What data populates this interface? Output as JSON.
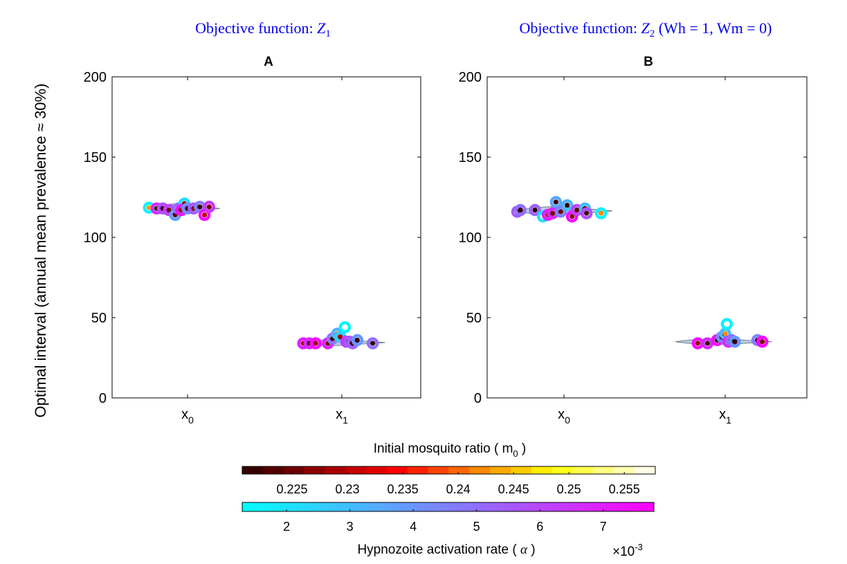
{
  "figure": {
    "ylabel": "Optimal interval (annual mean prevalence ≈ 30%)"
  },
  "chart_data": [
    {
      "type": "scatter",
      "panel_label": "A",
      "objective_title": "Objective function: Z1",
      "objective_prefix": "Objective function: ",
      "objective_var": "Z",
      "objective_sub": "1",
      "objective_suffix": "",
      "ylim": [
        0,
        200
      ],
      "yticks": [
        0,
        50,
        100,
        150,
        200
      ],
      "ytick_labels": [
        "0",
        "50",
        "100",
        "150",
        "200"
      ],
      "categories": [
        "x0",
        "x1"
      ],
      "category_base": "x",
      "category_subs": [
        "0",
        "1"
      ],
      "violins": [
        {
          "category": 0,
          "center": 118,
          "left_extent": -0.24,
          "right_extent": 0.21,
          "half_height": 2.5
        },
        {
          "category": 1,
          "center": 34.5,
          "left_extent": -0.27,
          "right_extent": 0.28,
          "half_height": 1.6
        }
      ],
      "points": [
        {
          "cat": 0,
          "dx": -0.25,
          "y": 118.5,
          "alpha": 1.6,
          "m0": 0.243
        },
        {
          "cat": 0,
          "dx": -0.2,
          "y": 118,
          "alpha": 6.8,
          "m0": 0.222
        },
        {
          "cat": 0,
          "dx": -0.16,
          "y": 118,
          "alpha": 5.8,
          "m0": 0.221
        },
        {
          "cat": 0,
          "dx": -0.12,
          "y": 117,
          "alpha": 6.2,
          "m0": 0.226
        },
        {
          "cat": 0,
          "dx": -0.08,
          "y": 114,
          "alpha": 3.8,
          "m0": 0.224
        },
        {
          "cat": 0,
          "dx": -0.06,
          "y": 118,
          "alpha": 5.0,
          "m0": 0.222
        },
        {
          "cat": 0,
          "dx": -0.02,
          "y": 121,
          "alpha": 2.2,
          "m0": 0.226
        },
        {
          "cat": 0,
          "dx": -0.04,
          "y": 117,
          "alpha": 7.4,
          "m0": 0.229
        },
        {
          "cat": 0,
          "dx": 0.0,
          "y": 118,
          "alpha": 4.2,
          "m0": 0.221
        },
        {
          "cat": 0,
          "dx": 0.04,
          "y": 118,
          "alpha": 5.5,
          "m0": 0.227
        },
        {
          "cat": 0,
          "dx": 0.08,
          "y": 119,
          "alpha": 4.6,
          "m0": 0.221
        },
        {
          "cat": 0,
          "dx": 0.11,
          "y": 114,
          "alpha": 7.6,
          "m0": 0.23
        },
        {
          "cat": 0,
          "dx": 0.14,
          "y": 119,
          "alpha": 6.4,
          "m0": 0.226
        },
        {
          "cat": 1,
          "dx": -0.25,
          "y": 34,
          "alpha": 7.2,
          "m0": 0.228
        },
        {
          "cat": 1,
          "dx": -0.21,
          "y": 34,
          "alpha": 6.8,
          "m0": 0.222
        },
        {
          "cat": 1,
          "dx": -0.17,
          "y": 34,
          "alpha": 7.6,
          "m0": 0.228
        },
        {
          "cat": 1,
          "dx": -0.09,
          "y": 34,
          "alpha": 7.0,
          "m0": 0.226
        },
        {
          "cat": 1,
          "dx": -0.06,
          "y": 37,
          "alpha": 4.8,
          "m0": 0.221
        },
        {
          "cat": 1,
          "dx": -0.03,
          "y": 40,
          "alpha": 3.2,
          "m0": 0.24
        },
        {
          "cat": 1,
          "dx": -0.01,
          "y": 38,
          "alpha": 2.6,
          "m0": 0.228
        },
        {
          "cat": 1,
          "dx": 0.02,
          "y": 44,
          "alpha": 1.6,
          "m0": 0.257
        },
        {
          "cat": 1,
          "dx": 0.03,
          "y": 35,
          "alpha": 6.5,
          "m0": 0.221
        },
        {
          "cat": 1,
          "dx": 0.05,
          "y": 35,
          "alpha": 5.6,
          "m0": 0.224
        },
        {
          "cat": 1,
          "dx": 0.07,
          "y": 34,
          "alpha": 5.2,
          "m0": 0.222
        },
        {
          "cat": 1,
          "dx": 0.1,
          "y": 36,
          "alpha": 4.0,
          "m0": 0.221
        },
        {
          "cat": 1,
          "dx": 0.2,
          "y": 34,
          "alpha": 5.0,
          "m0": 0.221
        }
      ]
    },
    {
      "type": "scatter",
      "panel_label": "B",
      "objective_title": "Objective function: Z2 (Wh = 1, Wm = 0)",
      "objective_prefix": "Objective function: ",
      "objective_var": "Z",
      "objective_sub": "2",
      "objective_suffix": " (Wh = 1,  Wm = 0)",
      "ylim": [
        0,
        200
      ],
      "yticks": [
        0,
        50,
        100,
        150,
        200
      ],
      "ytick_labels": [
        "0",
        "50",
        "100",
        "150",
        "200"
      ],
      "categories": [
        "x0",
        "x1"
      ],
      "category_base": "x",
      "category_subs": [
        "0",
        "1"
      ],
      "violins": [
        {
          "category": 0,
          "center": 116.5,
          "left_extent": -0.3,
          "right_extent": 0.3,
          "half_height": 2.2
        },
        {
          "category": 1,
          "center": 35,
          "left_extent": -0.31,
          "right_extent": 0.29,
          "half_height": 1.5
        }
      ],
      "points": [
        {
          "cat": 0,
          "dx": -0.29,
          "y": 116,
          "alpha": 5.5,
          "m0": 0.221
        },
        {
          "cat": 0,
          "dx": -0.27,
          "y": 117,
          "alpha": 5.0,
          "m0": 0.221
        },
        {
          "cat": 0,
          "dx": -0.18,
          "y": 117,
          "alpha": 5.3,
          "m0": 0.221
        },
        {
          "cat": 0,
          "dx": -0.13,
          "y": 113,
          "alpha": 2.0,
          "m0": 0.257
        },
        {
          "cat": 0,
          "dx": -0.1,
          "y": 114,
          "alpha": 7.0,
          "m0": 0.228
        },
        {
          "cat": 0,
          "dx": -0.07,
          "y": 115,
          "alpha": 6.8,
          "m0": 0.226
        },
        {
          "cat": 0,
          "dx": -0.05,
          "y": 122,
          "alpha": 3.6,
          "m0": 0.221
        },
        {
          "cat": 0,
          "dx": -0.02,
          "y": 116,
          "alpha": 4.5,
          "m0": 0.224
        },
        {
          "cat": 0,
          "dx": 0.02,
          "y": 120,
          "alpha": 3.2,
          "m0": 0.221
        },
        {
          "cat": 0,
          "dx": 0.05,
          "y": 113,
          "alpha": 7.5,
          "m0": 0.227
        },
        {
          "cat": 0,
          "dx": 0.08,
          "y": 117,
          "alpha": 6.2,
          "m0": 0.224
        },
        {
          "cat": 0,
          "dx": 0.13,
          "y": 118,
          "alpha": 3.0,
          "m0": 0.222
        },
        {
          "cat": 0,
          "dx": 0.14,
          "y": 115,
          "alpha": 5.8,
          "m0": 0.223
        },
        {
          "cat": 0,
          "dx": 0.23,
          "y": 115,
          "alpha": 1.6,
          "m0": 0.242
        },
        {
          "cat": 1,
          "dx": -0.17,
          "y": 34,
          "alpha": 7.6,
          "m0": 0.228
        },
        {
          "cat": 1,
          "dx": -0.11,
          "y": 34,
          "alpha": 6.8,
          "m0": 0.222
        },
        {
          "cat": 1,
          "dx": -0.05,
          "y": 36,
          "alpha": 7.4,
          "m0": 0.222
        },
        {
          "cat": 1,
          "dx": -0.02,
          "y": 38,
          "alpha": 4.2,
          "m0": 0.221
        },
        {
          "cat": 1,
          "dx": 0.0,
          "y": 40,
          "alpha": 3.0,
          "m0": 0.242
        },
        {
          "cat": 1,
          "dx": 0.01,
          "y": 46,
          "alpha": 1.6,
          "m0": 0.257
        },
        {
          "cat": 1,
          "dx": 0.02,
          "y": 35,
          "alpha": 6.8,
          "m0": 0.222
        },
        {
          "cat": 1,
          "dx": 0.04,
          "y": 36,
          "alpha": 5.0,
          "m0": 0.221
        },
        {
          "cat": 1,
          "dx": 0.06,
          "y": 35,
          "alpha": 4.0,
          "m0": 0.221
        },
        {
          "cat": 1,
          "dx": 0.2,
          "y": 36,
          "alpha": 4.5,
          "m0": 0.221
        },
        {
          "cat": 1,
          "dx": 0.23,
          "y": 35,
          "alpha": 7.6,
          "m0": 0.227
        }
      ]
    }
  ],
  "colorbars": {
    "m0": {
      "title": "Initial mosquito ratio ( m",
      "title_sub": "0",
      "title_suffix": " )",
      "range": [
        0.2205,
        0.2578
      ],
      "ticks": [
        0.225,
        0.23,
        0.235,
        0.24,
        0.245,
        0.25,
        0.255
      ],
      "tick_labels": [
        "0.225",
        "0.23",
        "0.235",
        "0.24",
        "0.245",
        "0.25",
        "0.255"
      ],
      "colormap": "hot",
      "segments": 20
    },
    "alpha": {
      "title": "Hypnozoite activation rate ( ",
      "title_symbol": "α",
      "title_suffix": " )",
      "range": [
        1.3,
        7.8
      ],
      "ticks": [
        2,
        3,
        4,
        5,
        6,
        7
      ],
      "tick_labels": [
        "2",
        "3",
        "4",
        "5",
        "6",
        "7"
      ],
      "colormap": "cool",
      "exponent_base": "×10",
      "exponent": "-3"
    }
  },
  "colors": {
    "title_blue": "#0000ee",
    "axis": "#000000",
    "violin_fill": "#b8cfe0",
    "violin_stroke": "#6f7f8f"
  }
}
